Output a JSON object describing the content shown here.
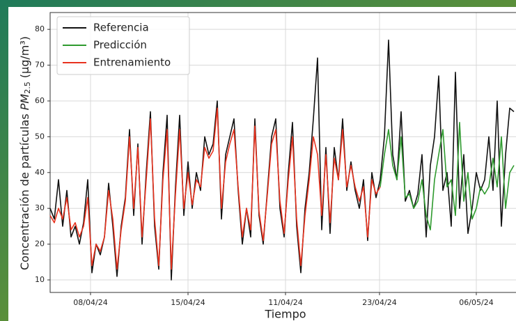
{
  "chart_data": {
    "type": "line",
    "xlabel": "Tiempo",
    "ylabel": {
      "prefix": "Concentración de partículas ",
      "symbol": "PM",
      "subscript": "2.5",
      "suffix": " (μg/m³)"
    },
    "x": [
      0,
      3,
      6,
      9,
      12,
      15,
      18,
      21,
      24,
      27,
      30,
      33,
      36,
      39,
      42,
      45,
      48,
      51,
      54,
      57,
      60,
      63,
      66,
      69,
      72,
      75,
      78,
      81,
      84,
      87,
      90,
      93,
      96,
      99,
      102,
      105,
      108,
      111,
      114,
      117,
      120,
      123,
      126,
      129,
      132,
      135,
      138,
      141,
      144,
      147,
      150,
      153,
      156,
      159,
      162,
      165,
      168,
      171,
      174,
      177,
      180,
      183,
      186,
      189,
      192,
      195,
      198,
      201,
      204,
      207,
      210,
      213,
      216,
      219,
      222,
      225,
      228,
      231,
      234,
      237,
      240,
      243,
      246,
      249,
      252,
      255,
      258,
      261,
      264,
      267,
      270,
      273,
      276,
      279,
      282,
      285,
      288,
      291,
      294,
      297,
      300,
      303,
      306,
      309,
      312,
      315,
      318,
      321,
      324,
      327,
      330,
      333
    ],
    "series": [
      {
        "name": "Referencia",
        "color": "#111111",
        "values": [
          30,
          27,
          38,
          25,
          35,
          22,
          25,
          20,
          26,
          38,
          12,
          20,
          17,
          22,
          37,
          25,
          11,
          25,
          33,
          52,
          28,
          48,
          20,
          40,
          57,
          25,
          13,
          40,
          56,
          10,
          36,
          56,
          28,
          43,
          30,
          40,
          35,
          50,
          45,
          48,
          60,
          27,
          45,
          50,
          55,
          35,
          20,
          30,
          22,
          55,
          28,
          20,
          35,
          50,
          55,
          30,
          22,
          40,
          54,
          25,
          12,
          30,
          40,
          55,
          72,
          24,
          47,
          23,
          47,
          38,
          55,
          35,
          43,
          35,
          30,
          38,
          21,
          40,
          33,
          38,
          50,
          77,
          45,
          38,
          57,
          32,
          35,
          30,
          34,
          45,
          22,
          42,
          50,
          67,
          35,
          40,
          25,
          68,
          30,
          45,
          23,
          30,
          40,
          35,
          38,
          50,
          35,
          60,
          25,
          45,
          58,
          57
        ]
      },
      {
        "name": "Predicción",
        "color": "#2e9a2e",
        "values": [
          null,
          null,
          null,
          null,
          null,
          null,
          null,
          null,
          null,
          null,
          null,
          null,
          null,
          null,
          null,
          null,
          null,
          null,
          null,
          null,
          null,
          null,
          null,
          null,
          null,
          null,
          null,
          null,
          null,
          null,
          null,
          null,
          null,
          null,
          null,
          null,
          null,
          null,
          null,
          null,
          null,
          null,
          null,
          null,
          null,
          null,
          null,
          null,
          null,
          null,
          null,
          null,
          null,
          null,
          null,
          null,
          null,
          null,
          null,
          null,
          null,
          null,
          null,
          null,
          null,
          null,
          null,
          null,
          null,
          null,
          null,
          null,
          null,
          null,
          null,
          null,
          null,
          null,
          null,
          36,
          45,
          52,
          42,
          38,
          50,
          33,
          34,
          30,
          32,
          38,
          28,
          24,
          38,
          45,
          52,
          36,
          38,
          28,
          54,
          32,
          40,
          27,
          30,
          36,
          34,
          36,
          44,
          36,
          50,
          30,
          40,
          42
        ]
      },
      {
        "name": "Entrenamiento",
        "color": "#e8321e",
        "values": [
          28,
          26,
          30,
          27,
          33,
          24,
          26,
          22,
          25,
          33,
          14,
          20,
          18,
          22,
          35,
          27,
          13,
          24,
          32,
          50,
          30,
          47,
          22,
          38,
          55,
          27,
          14,
          38,
          52,
          13,
          34,
          52,
          30,
          40,
          31,
          38,
          36,
          47,
          44,
          46,
          58,
          30,
          43,
          48,
          52,
          36,
          22,
          30,
          24,
          53,
          29,
          21,
          34,
          48,
          52,
          32,
          23,
          38,
          50,
          27,
          14,
          28,
          38,
          50,
          45,
          28,
          45,
          26,
          44,
          38,
          52,
          36,
          42,
          36,
          32,
          36,
          22,
          38,
          34,
          36,
          null,
          null,
          null,
          null,
          null,
          null,
          null,
          null,
          null,
          null,
          null,
          null,
          null,
          null,
          null,
          null,
          null,
          null,
          null,
          null,
          null,
          null,
          null,
          null,
          null,
          null,
          null,
          null,
          null,
          null,
          null,
          null
        ]
      }
    ],
    "xlim": [
      0,
      334.5
    ],
    "xticks": [
      {
        "value": 29,
        "label": "08/04/24"
      },
      {
        "value": 99,
        "label": "15/04/24"
      },
      {
        "value": 169,
        "label": "11/04/24"
      },
      {
        "value": 236.5,
        "label": "23/04/24"
      },
      {
        "value": 306,
        "label": "06/05/24"
      }
    ],
    "ylim": [
      6.5,
      84.7
    ],
    "yticks": [
      10,
      20,
      30,
      40,
      50,
      60,
      70,
      80
    ],
    "grid": true,
    "legend": "upper left"
  }
}
